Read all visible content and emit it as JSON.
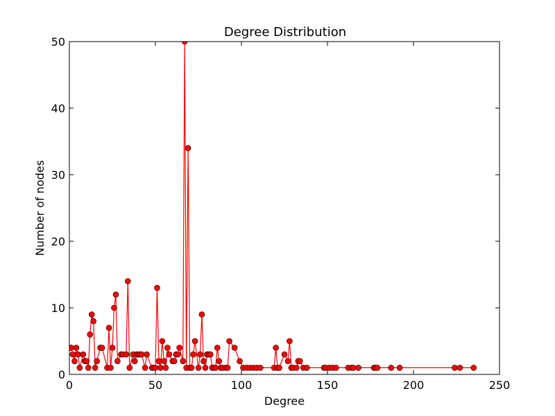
{
  "chart_data": {
    "type": "line",
    "title": "Degree Distribution",
    "xlabel": "Degree",
    "ylabel": "Number of nodes",
    "xlim": [
      0,
      250
    ],
    "ylim": [
      0,
      50
    ],
    "xticks": [
      "0",
      "50",
      "100",
      "150",
      "200",
      "250"
    ],
    "yticks": [
      "0",
      "10",
      "20",
      "30",
      "40",
      "50"
    ],
    "grid": false,
    "legend": "none",
    "marker": "circle",
    "line_color": "#ff0000",
    "marker_color": "#ff0000",
    "series": [
      {
        "x": [
          0,
          1,
          2,
          3,
          4,
          5,
          6,
          8,
          9,
          10,
          11,
          12,
          13,
          14,
          15,
          16,
          18,
          19,
          22,
          23,
          24,
          25,
          26,
          27,
          28,
          30,
          31,
          33,
          34,
          35,
          37,
          38,
          39,
          40,
          41,
          42,
          44,
          45,
          48,
          49,
          50,
          51,
          52,
          53,
          54,
          55,
          56,
          57,
          58,
          60,
          61,
          62,
          63,
          64,
          66,
          67,
          68,
          69,
          70,
          71,
          72,
          73,
          75,
          76,
          77,
          78,
          79,
          80,
          81,
          82,
          83,
          84,
          85,
          86,
          87,
          88,
          89,
          91,
          92,
          93,
          96,
          99,
          101,
          103,
          105,
          107,
          109,
          111,
          119,
          120,
          121,
          122,
          125,
          127,
          128,
          129,
          130,
          132,
          133,
          134,
          136,
          138,
          148,
          149,
          151,
          153,
          155,
          162,
          164,
          165,
          168,
          177,
          178,
          179,
          187,
          192,
          224,
          227,
          235
        ],
        "y": [
          4,
          4,
          3,
          2,
          4,
          3,
          1,
          3,
          2,
          2,
          1,
          6,
          9,
          8,
          1,
          2,
          4,
          4,
          1,
          7,
          1,
          4,
          10,
          12,
          2,
          3,
          3,
          3,
          14,
          1,
          3,
          2,
          3,
          3,
          3,
          3,
          1,
          3,
          1,
          1,
          1,
          13,
          2,
          1,
          5,
          2,
          1,
          4,
          3,
          2,
          2,
          3,
          3,
          4,
          2,
          50,
          1,
          34,
          1,
          1,
          3,
          5,
          1,
          3,
          9,
          2,
          1,
          3,
          3,
          3,
          1,
          1,
          1,
          4,
          2,
          1,
          1,
          1,
          1,
          5,
          4,
          2,
          1,
          1,
          1,
          1,
          1,
          1,
          1,
          4,
          1,
          1,
          3,
          2,
          5,
          1,
          1,
          1,
          2,
          2,
          1,
          1,
          1,
          1,
          1,
          1,
          1,
          1,
          1,
          1,
          1,
          1,
          1,
          1,
          1,
          1,
          1,
          1,
          1
        ]
      }
    ]
  }
}
